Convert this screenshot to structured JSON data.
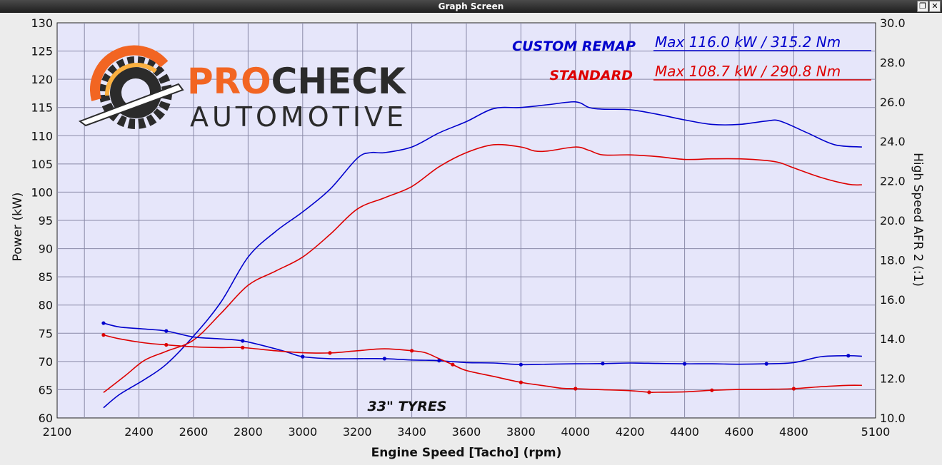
{
  "window": {
    "title": "Graph Screen",
    "restore_glyph": "❐",
    "close_glyph": "✕"
  },
  "logo": {
    "word1": "PRO",
    "word2": "CHECK",
    "word3": "AUTOMOTIVE",
    "colors": {
      "orange": "#f26522",
      "dark": "#2b2b2b"
    }
  },
  "chart_data": {
    "type": "line",
    "xlabel": "Engine Speed [Tacho] (rpm)",
    "ylabel_left": "Power (kW)",
    "ylabel_right": "High Speed AFR 2 (:1)",
    "xlim": [
      2100,
      5100
    ],
    "ylim_left": [
      60,
      130
    ],
    "ylim_right": [
      10,
      30
    ],
    "x_ticks": [
      2100,
      2400,
      2600,
      2800,
      3000,
      3200,
      3400,
      3600,
      3800,
      4000,
      4200,
      4400,
      4600,
      4800,
      5100
    ],
    "left_ticks": [
      60,
      65,
      70,
      75,
      80,
      85,
      90,
      95,
      100,
      105,
      110,
      115,
      120,
      125,
      130
    ],
    "right_ticks": [
      "10.0",
      "12.0",
      "14.0",
      "16.0",
      "18.0",
      "20.0",
      "22.0",
      "24.0",
      "26.0",
      "28.0",
      "30.0"
    ],
    "grid": true,
    "annotation": "33\" TYRES",
    "legend": [
      {
        "name": "CUSTOM REMAP",
        "max_text": "Max 116.0 kW  / 315.2 Nm",
        "color": "#0000cc"
      },
      {
        "name": "STANDARD",
        "max_text": "Max 108.7 kW  / 290.8 Nm",
        "color": "#dd0000"
      }
    ],
    "series": [
      {
        "name": "CUSTOM REMAP",
        "axis": "left",
        "color": "#0000cc",
        "points": [
          [
            2270,
            61.8
          ],
          [
            2330,
            64.2
          ],
          [
            2420,
            66.8
          ],
          [
            2500,
            69.5
          ],
          [
            2600,
            74.5
          ],
          [
            2700,
            80.5
          ],
          [
            2800,
            88.5
          ],
          [
            2900,
            93
          ],
          [
            3000,
            96.5
          ],
          [
            3100,
            100.5
          ],
          [
            3200,
            106
          ],
          [
            3250,
            107
          ],
          [
            3300,
            107
          ],
          [
            3400,
            108
          ],
          [
            3500,
            110.5
          ],
          [
            3600,
            112.5
          ],
          [
            3700,
            114.8
          ],
          [
            3800,
            115
          ],
          [
            3900,
            115.5
          ],
          [
            4000,
            116
          ],
          [
            4050,
            115
          ],
          [
            4100,
            114.7
          ],
          [
            4200,
            114.6
          ],
          [
            4300,
            113.8
          ],
          [
            4400,
            112.8
          ],
          [
            4500,
            112
          ],
          [
            4600,
            112
          ],
          [
            4700,
            112.6
          ],
          [
            4750,
            112.6
          ],
          [
            4850,
            110.5
          ],
          [
            4950,
            108.4
          ],
          [
            5050,
            108
          ]
        ]
      },
      {
        "name": "STANDARD",
        "axis": "left",
        "color": "#dd0000",
        "points": [
          [
            2270,
            64.5
          ],
          [
            2350,
            67.5
          ],
          [
            2420,
            70.2
          ],
          [
            2500,
            71.8
          ],
          [
            2600,
            73.8
          ],
          [
            2700,
            78.5
          ],
          [
            2800,
            83.5
          ],
          [
            2900,
            86
          ],
          [
            3000,
            88.5
          ],
          [
            3100,
            92.5
          ],
          [
            3200,
            97
          ],
          [
            3300,
            99
          ],
          [
            3400,
            101
          ],
          [
            3500,
            104.5
          ],
          [
            3600,
            107
          ],
          [
            3700,
            108.4
          ],
          [
            3800,
            108
          ],
          [
            3850,
            107.3
          ],
          [
            3900,
            107.3
          ],
          [
            4000,
            108
          ],
          [
            4050,
            107.4
          ],
          [
            4100,
            106.6
          ],
          [
            4200,
            106.6
          ],
          [
            4300,
            106.3
          ],
          [
            4400,
            105.8
          ],
          [
            4500,
            105.9
          ],
          [
            4600,
            105.9
          ],
          [
            4700,
            105.6
          ],
          [
            4750,
            105.2
          ],
          [
            4800,
            104.3
          ],
          [
            4900,
            102.6
          ],
          [
            5000,
            101.4
          ],
          [
            5050,
            101.3
          ]
        ]
      },
      {
        "name": "CUSTOM REMAP",
        "axis": "right",
        "color": "#0000cc",
        "points": [
          [
            2270,
            14.8
          ],
          [
            2330,
            14.6
          ],
          [
            2420,
            14.5
          ],
          [
            2500,
            14.4
          ],
          [
            2600,
            14.1
          ],
          [
            2700,
            14.0
          ],
          [
            2780,
            13.9
          ],
          [
            2900,
            13.5
          ],
          [
            2950,
            13.3
          ],
          [
            3000,
            13.1
          ],
          [
            3100,
            13.0
          ],
          [
            3200,
            13.0
          ],
          [
            3300,
            13.0
          ],
          [
            3400,
            12.93
          ],
          [
            3450,
            12.92
          ],
          [
            3500,
            12.9
          ],
          [
            3600,
            12.8
          ],
          [
            3700,
            12.78
          ],
          [
            3800,
            12.7
          ],
          [
            3900,
            12.72
          ],
          [
            4000,
            12.74
          ],
          [
            4100,
            12.75
          ],
          [
            4200,
            12.78
          ],
          [
            4300,
            12.76
          ],
          [
            4400,
            12.74
          ],
          [
            4500,
            12.74
          ],
          [
            4600,
            12.72
          ],
          [
            4700,
            12.74
          ],
          [
            4800,
            12.8
          ],
          [
            4900,
            13.1
          ],
          [
            5000,
            13.15
          ],
          [
            5050,
            13.12
          ]
        ]
      },
      {
        "name": "STANDARD",
        "axis": "right",
        "color": "#dd0000",
        "points": [
          [
            2270,
            14.2
          ],
          [
            2330,
            14.0
          ],
          [
            2420,
            13.8
          ],
          [
            2500,
            13.7
          ],
          [
            2600,
            13.6
          ],
          [
            2700,
            13.56
          ],
          [
            2780,
            13.56
          ],
          [
            2900,
            13.4
          ],
          [
            3000,
            13.3
          ],
          [
            3100,
            13.29
          ],
          [
            3200,
            13.4
          ],
          [
            3300,
            13.5
          ],
          [
            3400,
            13.4
          ],
          [
            3450,
            13.3
          ],
          [
            3500,
            13.0
          ],
          [
            3550,
            12.7
          ],
          [
            3600,
            12.4
          ],
          [
            3700,
            12.1
          ],
          [
            3800,
            11.8
          ],
          [
            3900,
            11.6
          ],
          [
            3950,
            11.5
          ],
          [
            4000,
            11.48
          ],
          [
            4100,
            11.43
          ],
          [
            4200,
            11.38
          ],
          [
            4270,
            11.3
          ],
          [
            4300,
            11.3
          ],
          [
            4400,
            11.32
          ],
          [
            4500,
            11.4
          ],
          [
            4600,
            11.44
          ],
          [
            4700,
            11.45
          ],
          [
            4800,
            11.48
          ],
          [
            4900,
            11.58
          ],
          [
            5000,
            11.65
          ],
          [
            5050,
            11.65
          ]
        ]
      }
    ]
  }
}
